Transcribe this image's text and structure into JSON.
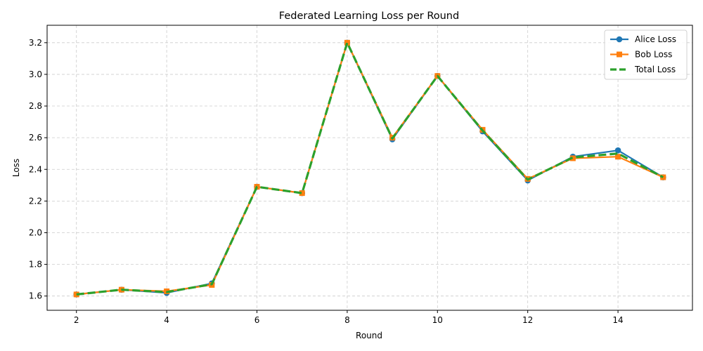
{
  "chart_data": {
    "type": "line",
    "title": "Federated Learning Loss per Round",
    "xlabel": "Round",
    "ylabel": "Loss",
    "x": [
      2,
      3,
      4,
      5,
      6,
      7,
      8,
      9,
      10,
      11,
      12,
      13,
      14,
      15
    ],
    "xlim": [
      1.35,
      15.65
    ],
    "ylim": [
      1.51,
      3.31
    ],
    "xticks": [
      2,
      4,
      6,
      8,
      10,
      12,
      14
    ],
    "yticks": [
      1.6,
      1.8,
      2.0,
      2.2,
      2.4,
      2.6,
      2.8,
      3.0,
      3.2
    ],
    "grid": true,
    "legend_position": "top-right",
    "series": [
      {
        "name": "Alice Loss",
        "color": "#1f77b4",
        "marker": "circle",
        "line_style": "solid",
        "values": [
          1.61,
          1.64,
          1.62,
          1.68,
          2.29,
          2.25,
          3.2,
          2.59,
          2.99,
          2.64,
          2.33,
          2.48,
          2.52,
          2.35
        ]
      },
      {
        "name": "Bob Loss",
        "color": "#ff7f0e",
        "marker": "square",
        "line_style": "solid",
        "values": [
          1.61,
          1.64,
          1.63,
          1.67,
          2.29,
          2.25,
          3.2,
          2.6,
          2.99,
          2.65,
          2.34,
          2.47,
          2.48,
          2.35
        ]
      },
      {
        "name": "Total Loss",
        "color": "#2ca02c",
        "marker": "none",
        "line_style": "dashed",
        "values": [
          1.61,
          1.64,
          1.625,
          1.675,
          2.29,
          2.25,
          3.2,
          2.595,
          2.99,
          2.645,
          2.335,
          2.475,
          2.5,
          2.35
        ]
      }
    ]
  }
}
